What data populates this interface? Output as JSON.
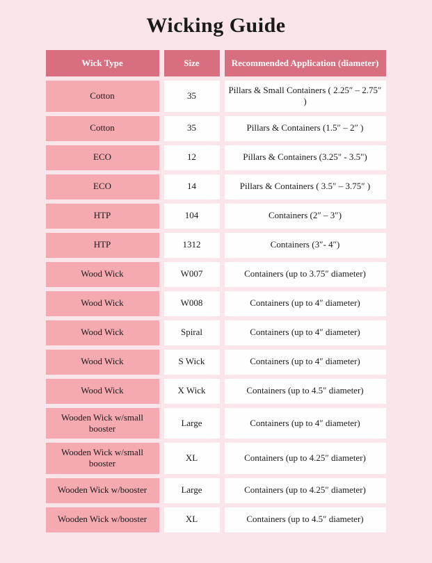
{
  "title": "Wicking Guide",
  "columns": {
    "type": "Wick Type",
    "size": "Size",
    "app": "Recommended Application (diameter)"
  },
  "rows": [
    {
      "type": "Cotton",
      "size": "35",
      "app": "Pillars & Small Containers ( 2.25″ – 2.75″ )"
    },
    {
      "type": "Cotton",
      "size": "35",
      "app": "Pillars & Containers (1.5″ – 2″ )"
    },
    {
      "type": "ECO",
      "size": "12",
      "app": "Pillars & Containers (3.25\" - 3.5\")"
    },
    {
      "type": "ECO",
      "size": "14",
      "app": "Pillars & Containers ( 3.5″ – 3.75″ )"
    },
    {
      "type": "HTP",
      "size": "104",
      "app": "Containers (2″ – 3″)"
    },
    {
      "type": "HTP",
      "size": "1312",
      "app": "Containers (3″- 4″)"
    },
    {
      "type": "Wood Wick",
      "size": "W007",
      "app": "Containers (up to 3.75″ diameter)"
    },
    {
      "type": "Wood Wick",
      "size": "W008",
      "app": "Containers (up to 4″ diameter)"
    },
    {
      "type": "Wood Wick",
      "size": "Spiral",
      "app": "Containers (up to 4″ diameter)"
    },
    {
      "type": "Wood Wick",
      "size": "S Wick",
      "app": "Containers (up to 4″ diameter)"
    },
    {
      "type": "Wood Wick",
      "size": "X Wick",
      "app": "Containers (up to 4.5″ diameter)"
    },
    {
      "type": "Wooden Wick w/small booster",
      "size": "Large",
      "app": "Containers (up to 4″ diameter)"
    },
    {
      "type": "Wooden Wick w/small booster",
      "size": "XL",
      "app": "Containers (up to 4.25″ diameter)"
    },
    {
      "type": "Wooden Wick w/booster",
      "size": "Large",
      "app": "Containers (up to 4.25″ diameter)"
    },
    {
      "type": "Wooden Wick w/booster",
      "size": "XL",
      "app": "Containers (up to 4.5″ diameter)"
    }
  ]
}
